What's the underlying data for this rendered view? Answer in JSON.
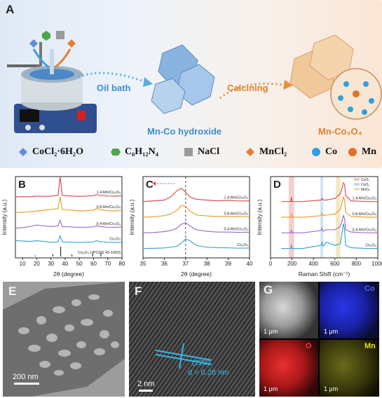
{
  "panels": {
    "a": "A",
    "b": "B",
    "c": "C",
    "d": "D",
    "e": "E",
    "f": "F",
    "g": "G"
  },
  "schematic": {
    "oil_bath": "Oil bath",
    "calcining": "Calcining",
    "intermediate": "Mn-Co hydroxide",
    "product": "Mn-Co₃O₄",
    "nacl_cube": "NaCl"
  },
  "legend": [
    {
      "label": "CoCl₂·6H₂O",
      "color": "#5b8fd6",
      "icon": "diamond-icon"
    },
    {
      "label": "C₆H₁₂N₄",
      "color": "#4aa84a",
      "icon": "hexagon-icon"
    },
    {
      "label": "NaCl",
      "color": "#9a9a9a",
      "icon": "cube-icon"
    },
    {
      "label": "MnCl₂",
      "color": "#e0803a",
      "icon": "diamond-icon"
    },
    {
      "label": "Co",
      "color": "#2f9fe0",
      "icon": "sphere-icon"
    },
    {
      "label": "Mn",
      "color": "#e0702a",
      "icon": "sphere-icon"
    }
  ],
  "colors": {
    "s14": "#e05050",
    "s08": "#e8a030",
    "s04": "#a070c8",
    "co3o4": "#3aaad8"
  },
  "chart_data": [
    {
      "type": "line",
      "panel": "B",
      "xlabel": "2θ (degree)",
      "ylabel": "Intensity (a.u.)",
      "xlim": [
        5,
        80
      ],
      "xticks": [
        10,
        20,
        30,
        40,
        50,
        60,
        70,
        80
      ],
      "series": [
        {
          "name": "1.4-Mn/Co₃O₄",
          "x": [
            5,
            10,
            15,
            20,
            25,
            30,
            35,
            36.5,
            38,
            45,
            50,
            55,
            60,
            62,
            65,
            70,
            75,
            80
          ],
          "y": [
            4.3,
            4.32,
            4.3,
            4.35,
            4.33,
            4.35,
            4.4,
            5.6,
            4.4,
            4.35,
            4.33,
            4.35,
            4.38,
            4.45,
            4.4,
            4.36,
            4.35,
            4.38
          ]
        },
        {
          "name": "0.8-Mn/Co₃O₄",
          "x": [
            5,
            10,
            15,
            20,
            25,
            30,
            35,
            36.5,
            38,
            45,
            50,
            55,
            60,
            62,
            65,
            70,
            75,
            80
          ],
          "y": [
            3.3,
            3.32,
            3.35,
            3.4,
            3.45,
            3.5,
            3.55,
            4.3,
            3.5,
            3.45,
            3.4,
            3.42,
            3.45,
            3.55,
            3.48,
            3.42,
            3.4,
            3.45
          ]
        },
        {
          "name": "0.4-Mn/Co₃O₄",
          "x": [
            5,
            10,
            15,
            20,
            25,
            30,
            35,
            36.5,
            38,
            45,
            50,
            55,
            60,
            62,
            65,
            70,
            75,
            80
          ],
          "y": [
            2.3,
            2.33,
            2.4,
            2.5,
            2.45,
            2.4,
            2.45,
            2.8,
            2.4,
            2.38,
            2.35,
            2.36,
            2.38,
            2.45,
            2.4,
            2.36,
            2.35,
            2.38
          ]
        },
        {
          "name": "Co₃O₄",
          "x": [
            5,
            10,
            15,
            20,
            25,
            30,
            35,
            36.5,
            38,
            45,
            50,
            55,
            60,
            62,
            65,
            70,
            75,
            80
          ],
          "y": [
            1.5,
            1.48,
            1.45,
            1.5,
            1.45,
            1.4,
            1.42,
            1.8,
            1.42,
            1.4,
            1.38,
            1.4,
            1.42,
            1.5,
            1.44,
            1.4,
            1.38,
            1.4
          ]
        }
      ],
      "reference": {
        "name": "Co₃O₄ (JPCDS 43-1003)",
        "peaks": [
          {
            "x": 19,
            "h": 0.1
          },
          {
            "x": 31.3,
            "h": 0.25
          },
          {
            "x": 36.9,
            "h": 1.0
          },
          {
            "x": 44.8,
            "h": 0.2
          },
          {
            "x": 59.4,
            "h": 0.3
          },
          {
            "x": 65.2,
            "h": 0.4
          }
        ]
      }
    },
    {
      "type": "line",
      "panel": "C",
      "xlabel": "2θ (degree)",
      "ylabel": "Intensity (a.u.)",
      "xlim": [
        35,
        40
      ],
      "xticks": [
        35,
        36,
        37,
        38,
        39,
        40
      ],
      "reference_line_x": 37,
      "series": [
        {
          "name": "1.4-Mn/Co₃O₄",
          "x": [
            35,
            35.5,
            36,
            36.3,
            36.6,
            36.8,
            37,
            37.2,
            37.5,
            38,
            38.5,
            39,
            39.5,
            40
          ],
          "y": [
            4.0,
            4.05,
            4.1,
            4.3,
            4.7,
            4.85,
            4.6,
            4.3,
            4.15,
            4.1,
            4.05,
            4.08,
            4.04,
            4.05
          ]
        },
        {
          "name": "0.8-Mn/Co₃O₄",
          "x": [
            35,
            35.5,
            36,
            36.3,
            36.6,
            36.8,
            37,
            37.2,
            37.5,
            38,
            38.5,
            39,
            39.5,
            40
          ],
          "y": [
            3.0,
            3.03,
            3.1,
            3.2,
            3.45,
            3.75,
            3.7,
            3.4,
            3.15,
            3.08,
            3.05,
            3.05,
            3.04,
            3.03
          ]
        },
        {
          "name": "0.4-Mn/Co₃O₄",
          "x": [
            35,
            35.5,
            36,
            36.3,
            36.6,
            36.8,
            37,
            37.2,
            37.5,
            38,
            38.5,
            39,
            39.5,
            40
          ],
          "y": [
            2.0,
            2.02,
            2.08,
            2.15,
            2.3,
            2.55,
            2.65,
            2.45,
            2.2,
            2.1,
            2.05,
            2.05,
            2.03,
            2.04
          ]
        },
        {
          "name": "Co₃O₄",
          "x": [
            35,
            35.5,
            36,
            36.3,
            36.6,
            36.8,
            37,
            37.2,
            37.5,
            38,
            38.5,
            39,
            39.5,
            40
          ],
          "y": [
            1.0,
            1.01,
            1.03,
            1.08,
            1.15,
            1.35,
            1.6,
            1.5,
            1.2,
            1.08,
            1.05,
            1.04,
            1.02,
            1.03
          ]
        }
      ]
    },
    {
      "type": "line",
      "panel": "D",
      "xlabel": "Raman Shift (cm⁻¹)",
      "ylabel": "Intensity (a.u.)",
      "xlim": [
        0,
        1000
      ],
      "xticks": [
        0,
        200,
        400,
        600,
        800,
        1000
      ],
      "bands": [
        {
          "name": "CoO₂",
          "x": [
            170,
            220
          ],
          "color": "#f4c0c0"
        },
        {
          "name": "CoO₆",
          "x": [
            465,
            490
          ],
          "color": "#c0dcf0"
        },
        {
          "name": "MnO₆",
          "x": [
            610,
            650
          ],
          "color": "#f4e0b0"
        }
      ],
      "series": [
        {
          "name": "1.4-Mn/Co₃O₄",
          "x": [
            100,
            190,
            195,
            200,
            300,
            470,
            480,
            490,
            520,
            600,
            650,
            680,
            690,
            700,
            750,
            900,
            1000
          ],
          "y": [
            4.0,
            4.0,
            4.3,
            4.0,
            4.0,
            4.1,
            4.2,
            4.1,
            4.1,
            4.2,
            4.5,
            5.2,
            5.1,
            4.4,
            4.05,
            4.0,
            4.0
          ]
        },
        {
          "name": "0.8-Mn/Co₃O₄",
          "x": [
            100,
            190,
            195,
            200,
            300,
            470,
            480,
            490,
            520,
            600,
            650,
            680,
            690,
            700,
            750,
            900,
            1000
          ],
          "y": [
            3.0,
            3.0,
            3.2,
            3.0,
            3.0,
            3.1,
            3.25,
            3.1,
            3.15,
            3.2,
            3.5,
            4.3,
            4.1,
            3.3,
            3.05,
            3.0,
            3.0
          ]
        },
        {
          "name": "0.4-Mn/Co₃O₄",
          "x": [
            100,
            190,
            195,
            200,
            300,
            470,
            480,
            490,
            520,
            600,
            650,
            680,
            690,
            700,
            750,
            900,
            1000
          ],
          "y": [
            2.0,
            2.0,
            2.2,
            2.0,
            2.0,
            2.15,
            2.3,
            2.1,
            2.2,
            2.2,
            2.4,
            3.1,
            2.9,
            2.2,
            2.05,
            2.0,
            2.0
          ]
        },
        {
          "name": "Co₃O₄",
          "x": [
            100,
            190,
            195,
            200,
            300,
            470,
            480,
            490,
            520,
            600,
            650,
            680,
            690,
            700,
            750,
            900,
            1000
          ],
          "y": [
            1.0,
            1.0,
            1.25,
            1.0,
            1.0,
            1.2,
            1.4,
            1.15,
            1.4,
            1.2,
            1.3,
            2.6,
            2.2,
            1.2,
            1.05,
            1.0,
            1.0
          ]
        }
      ]
    }
  ],
  "micrographs": {
    "e_scale": "200 nm",
    "f_scale": "2 nm",
    "f_plane": "(220)",
    "f_spacing": "d = 0.28 nm",
    "g_maps": [
      {
        "label": "",
        "color": "#d0d0d0"
      },
      {
        "label": "Co",
        "color": "#1e2ad8"
      },
      {
        "label": "O",
        "color": "#d81e1e"
      },
      {
        "label": "Mn",
        "color": "#d8d81e"
      }
    ],
    "g_scale": "1 μm"
  }
}
